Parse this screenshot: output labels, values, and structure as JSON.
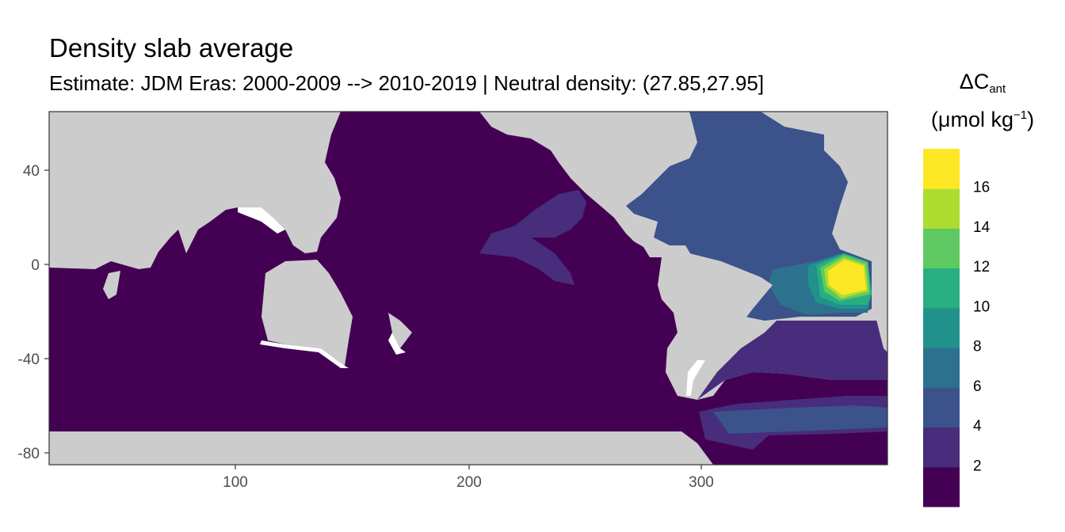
{
  "title": "Density slab average",
  "subtitle": "Estimate: JDM Eras: 2000-2009 --> 2010-2019 | Neutral density: (27.85,27.95]",
  "legend": {
    "title_main": "ΔC",
    "title_sub": "ant",
    "unit_open": "(μmol kg",
    "unit_sup": "−1",
    "unit_close": ")",
    "bins": [
      {
        "label": "2",
        "color": "#440154"
      },
      {
        "label": "4",
        "color": "#472d7b"
      },
      {
        "label": "6",
        "color": "#3b528b"
      },
      {
        "label": "8",
        "color": "#2c728e"
      },
      {
        "label": "10",
        "color": "#21918c"
      },
      {
        "label": "12",
        "color": "#28ae80"
      },
      {
        "label": "14",
        "color": "#5ec962"
      },
      {
        "label": "16",
        "color": "#addc30"
      },
      {
        "label": "",
        "color": "#fde725"
      }
    ]
  },
  "axes": {
    "x_ticks": [
      "100",
      "200",
      "300"
    ],
    "y_ticks": [
      "40",
      "0",
      "-40",
      "-80"
    ]
  },
  "colors": {
    "land": "#cccccc",
    "panel_bg": "#ffffff",
    "ocean_base": "#440154"
  }
}
